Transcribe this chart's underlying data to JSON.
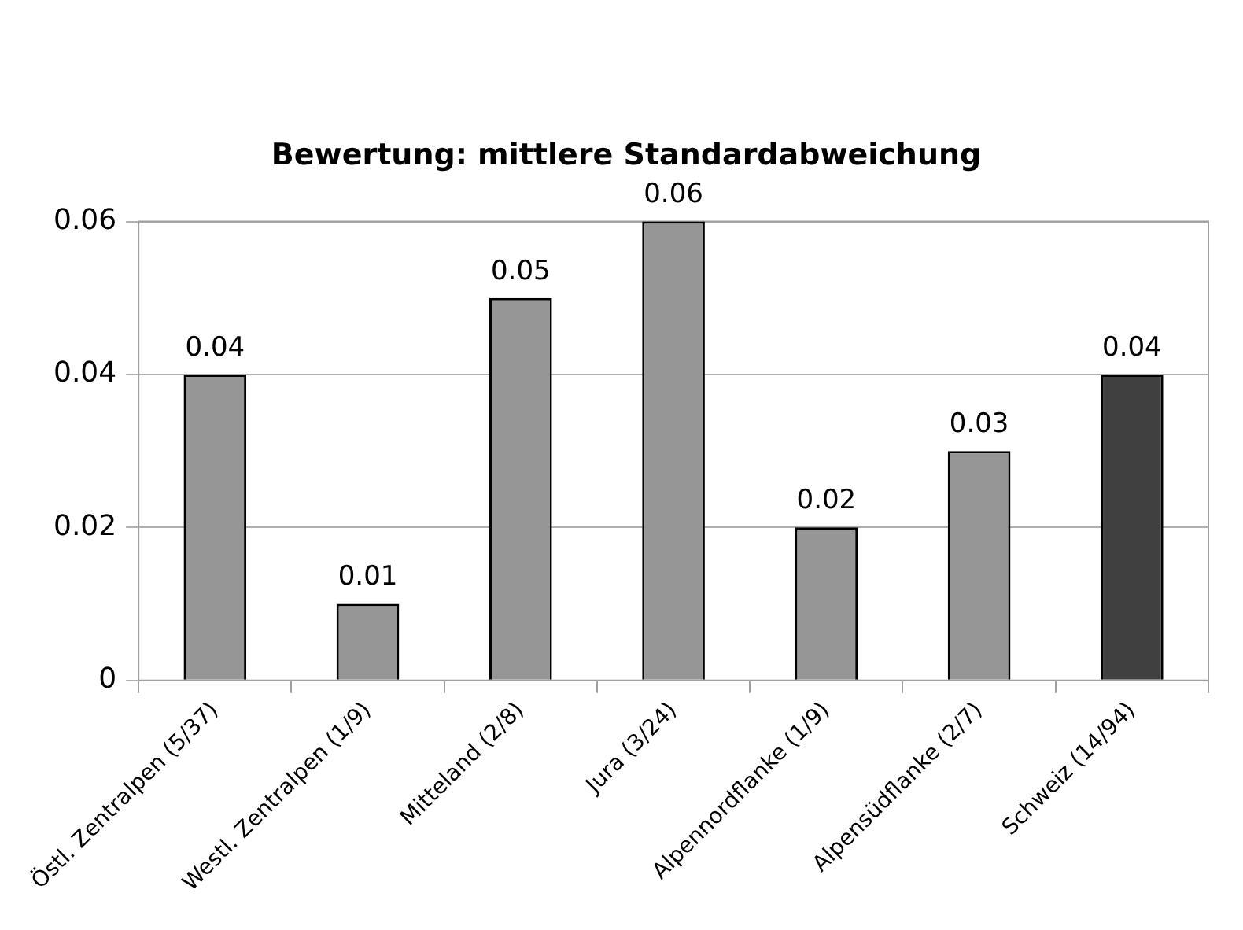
{
  "chart_data": {
    "type": "bar",
    "title": "Bewertung: mittlere Standardabweichung",
    "categories": [
      "Östl. Zentralpen (5/37)",
      "Westl. Zentralpen (1/9)",
      "Mitteland (2/8)",
      "Jura (3/24)",
      "Alpennordflanke (1/9)",
      "Alpensüdflanke (2/7)",
      "Schweiz (14/94)"
    ],
    "values": [
      0.04,
      0.01,
      0.05,
      0.06,
      0.02,
      0.03,
      0.04
    ],
    "colors": [
      "#969696",
      "#969696",
      "#969696",
      "#969696",
      "#969696",
      "#969696",
      "#404040"
    ],
    "ylim": [
      0,
      0.06
    ],
    "yticks": [
      0,
      0.02,
      0.04,
      0.06
    ],
    "grid": "y",
    "data_labels": true
  }
}
